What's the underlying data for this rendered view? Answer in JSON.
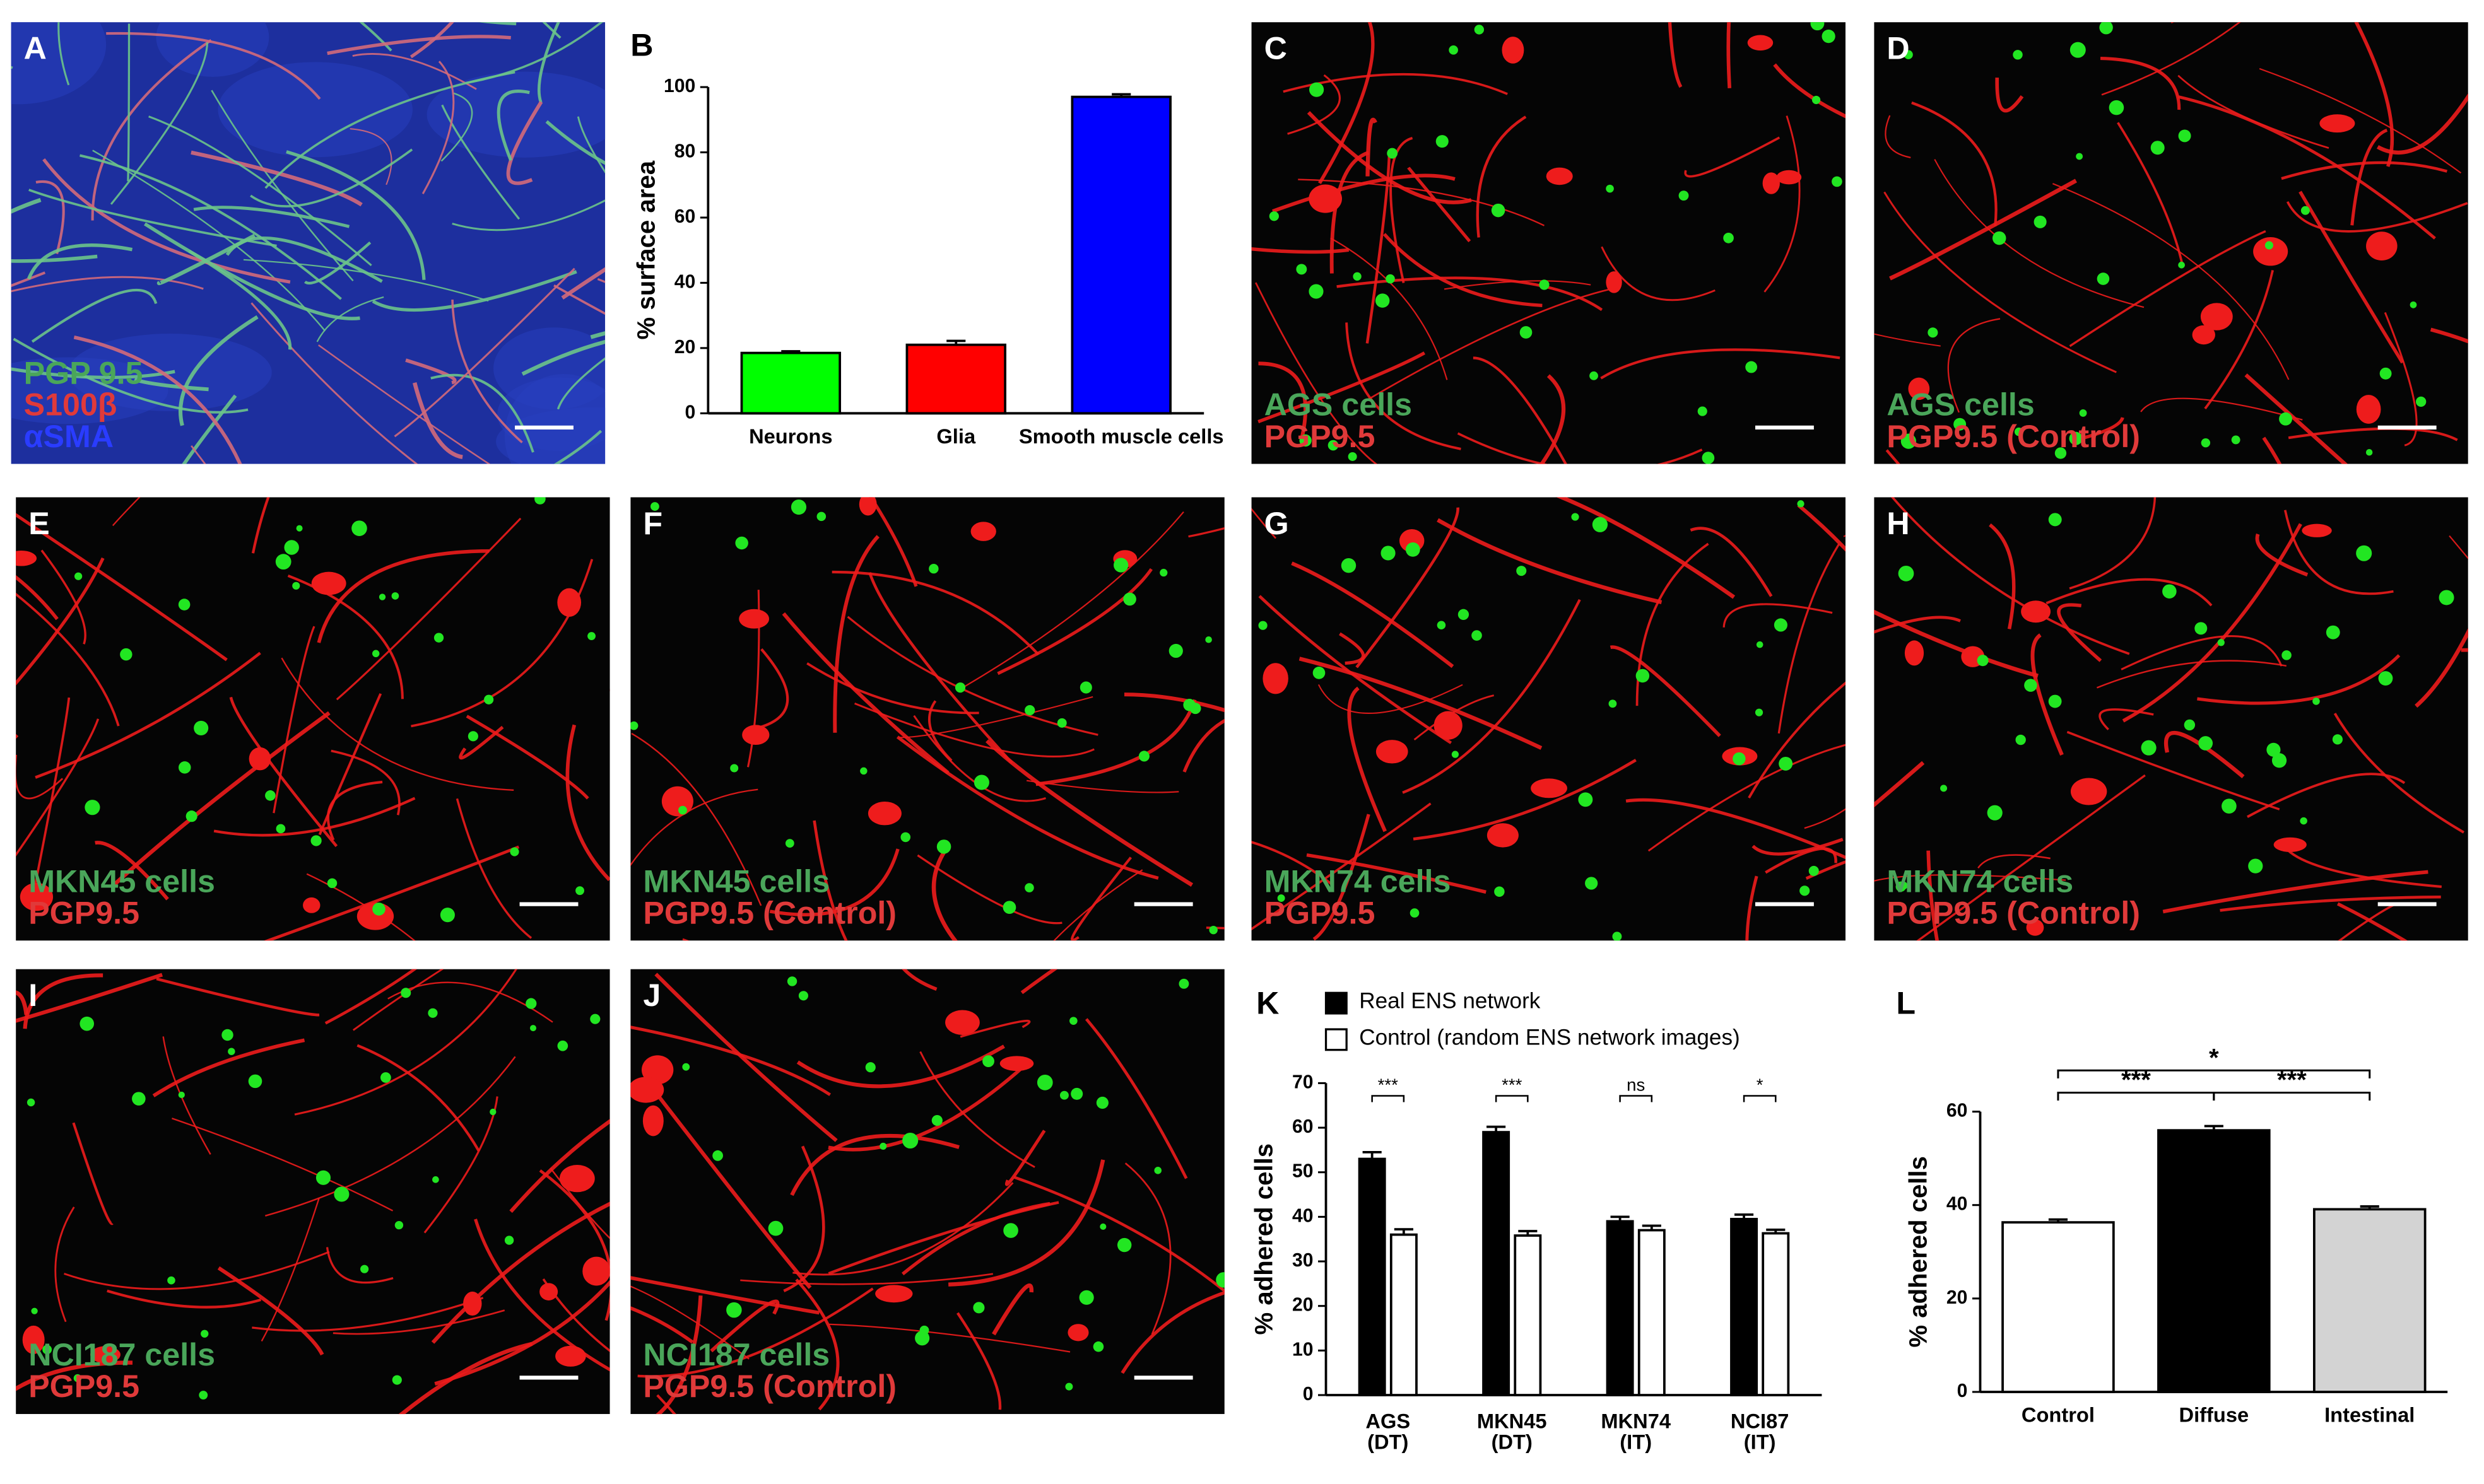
{
  "panels": [
    {
      "letter": "A",
      "lines": [
        "PGP 9.5",
        "S100β",
        "αSMA"
      ]
    },
    {
      "letter": "C",
      "lines": [
        "AGS cells",
        "PGP9.5"
      ]
    },
    {
      "letter": "D",
      "lines": [
        "AGS cells",
        "PGP9.5 (Control)"
      ]
    },
    {
      "letter": "E",
      "lines": [
        "MKN45 cells",
        "PGP9.5"
      ]
    },
    {
      "letter": "F",
      "lines": [
        "MKN45 cells",
        "PGP9.5 (Control)"
      ]
    },
    {
      "letter": "G",
      "lines": [
        "MKN74 cells",
        "PGP9.5"
      ]
    },
    {
      "letter": "H",
      "lines": [
        "MKN74 cells",
        "PGP9.5 (Control)"
      ]
    },
    {
      "letter": "I",
      "lines": [
        "NCI187 cells",
        "PGP9.5"
      ]
    },
    {
      "letter": "J",
      "lines": [
        "NCI187 cells",
        "PGP9.5 (Control)"
      ]
    }
  ],
  "chart_data": [
    {
      "type": "bar",
      "letter": "B",
      "ylabel": "% surface area",
      "categories": [
        "Neurons",
        "Glia",
        "Smooth muscle cells"
      ],
      "values": [
        18.5,
        21,
        97
      ],
      "errors": [
        0.5,
        1.2,
        0.8
      ],
      "colors": [
        "#00ff00",
        "#ff0000",
        "#0000ff"
      ],
      "ylim": [
        0,
        100
      ],
      "yticks": [
        0,
        20,
        40,
        60,
        80,
        100
      ]
    },
    {
      "type": "grouped-bar",
      "letter": "K",
      "ylabel": "% adhered cells",
      "categories": [
        "AGS\n(DT)",
        "MKN45\n(DT)",
        "MKN74\n(IT)",
        "NCI87\n(IT)"
      ],
      "series": [
        {
          "name": "Real ENS network",
          "color": "#000000",
          "values": [
            53,
            59,
            39,
            39.5
          ],
          "errors": [
            1.5,
            1.2,
            1,
            1
          ]
        },
        {
          "name": "Control (random ENS network images)",
          "color": "#ffffff",
          "values": [
            36,
            35.8,
            37,
            36.3
          ],
          "errors": [
            1.2,
            1,
            1,
            0.8
          ]
        }
      ],
      "annotations": [
        "***",
        "***",
        "ns",
        "*"
      ],
      "ylim": [
        0,
        70
      ],
      "yticks": [
        0,
        10,
        20,
        30,
        40,
        50,
        60,
        70
      ]
    },
    {
      "type": "bar",
      "letter": "L",
      "ylabel": "% adhered cells",
      "categories": [
        "Control",
        "Diffuse",
        "Intestinal"
      ],
      "values": [
        36.3,
        56,
        39.1
      ],
      "errors": [
        0.6,
        0.9,
        0.6
      ],
      "colors": [
        "#ffffff",
        "#000000",
        "#d3d3d3"
      ],
      "annotations": [
        "*",
        "***",
        "***"
      ],
      "ylim": [
        0,
        60
      ],
      "yticks": [
        0,
        20,
        40,
        60
      ]
    }
  ]
}
